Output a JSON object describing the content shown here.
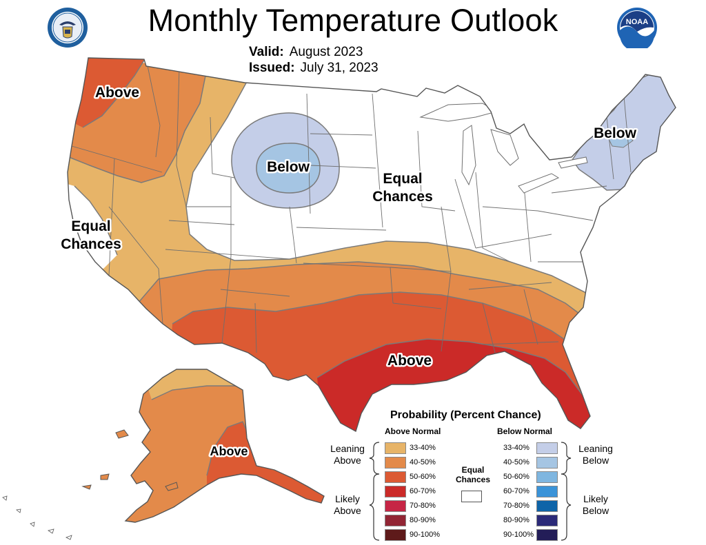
{
  "header": {
    "title": "Monthly Temperature Outlook",
    "valid_label": "Valid:",
    "valid_value": "August 2023",
    "issued_label": "Issued:",
    "issued_value": "July 31, 2023"
  },
  "logos": {
    "left": "commerce-seal-icon",
    "right": "noaa-logo-icon",
    "right_text": "NOAA"
  },
  "map_labels": {
    "above_nw": "Above",
    "below_rockies": "Below",
    "below_ne": "Below",
    "equal_central_1": "Equal",
    "equal_central_2": "Chances",
    "equal_west_1": "Equal",
    "equal_west_2": "Chances",
    "above_gulf": "Above",
    "above_alaska": "Above"
  },
  "colors": {
    "above_33_40": "#E7B468",
    "above_40_50": "#E38A4A",
    "above_50_60": "#DC5A33",
    "above_60_70": "#CB2A28",
    "above_70_80": "#C62545",
    "above_80_90": "#922534",
    "above_90_100": "#5E1A1A",
    "below_33_40": "#C4CEE8",
    "below_40_50": "#A5C5E3",
    "below_50_60": "#7FB6E0",
    "below_60_70": "#3A93D8",
    "below_70_80": "#0E64A8",
    "below_80_90": "#2B2A78",
    "below_90_100": "#231D58",
    "state_line": "#6e6e6e",
    "contour": "#7a7a7a"
  },
  "legend": {
    "title": "Probability (Percent Chance)",
    "above_header": "Above Normal",
    "below_header": "Below Normal",
    "above_ranges": [
      "33-40%",
      "40-50%",
      "50-60%",
      "60-70%",
      "70-80%",
      "80-90%",
      "90-100%"
    ],
    "below_ranges": [
      "33-40%",
      "40-50%",
      "50-60%",
      "60-70%",
      "70-80%",
      "80-90%",
      "90-100%"
    ],
    "leaning_above_1": "Leaning",
    "leaning_above_2": "Above",
    "likely_above_1": "Likely",
    "likely_above_2": "Above",
    "leaning_below_1": "Leaning",
    "leaning_below_2": "Below",
    "likely_below_1": "Likely",
    "likely_below_2": "Below",
    "equal_1": "Equal",
    "equal_2": "Chances"
  }
}
